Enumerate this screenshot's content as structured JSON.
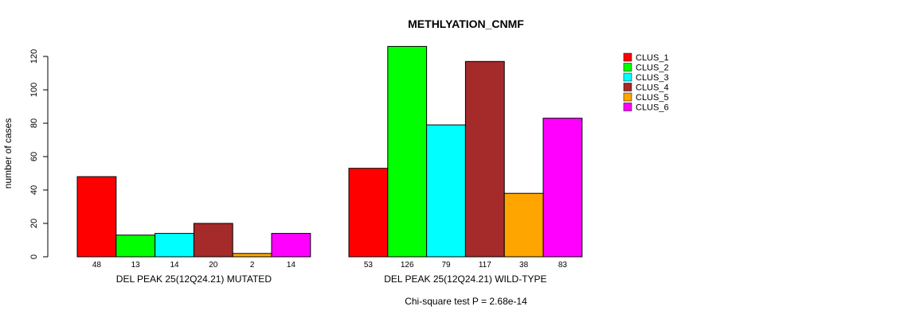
{
  "chart_data": {
    "type": "bar",
    "title": "METHLYATION_CNMF",
    "ylabel": "number of cases",
    "ylim": [
      0,
      126
    ],
    "yticks": [
      0,
      20,
      40,
      60,
      80,
      100,
      120
    ],
    "groups": [
      {
        "label": "DEL PEAK 25(12Q24.21) MUTATED",
        "values": [
          48,
          13,
          14,
          20,
          2,
          14
        ]
      },
      {
        "label": "DEL PEAK 25(12Q24.21) WILD-TYPE",
        "values": [
          53,
          126,
          79,
          117,
          38,
          83
        ]
      }
    ],
    "series": [
      {
        "name": "CLUS_1",
        "color": "#ff0000"
      },
      {
        "name": "CLUS_2",
        "color": "#00ff00"
      },
      {
        "name": "CLUS_3",
        "color": "#00ffff"
      },
      {
        "name": "CLUS_4",
        "color": "#a52a2a"
      },
      {
        "name": "CLUS_5",
        "color": "#ffa500"
      },
      {
        "name": "CLUS_6",
        "color": "#ff00ff"
      }
    ],
    "legend_position": "top-right",
    "footnote": "Chi-square test P = 2.68e-14"
  }
}
